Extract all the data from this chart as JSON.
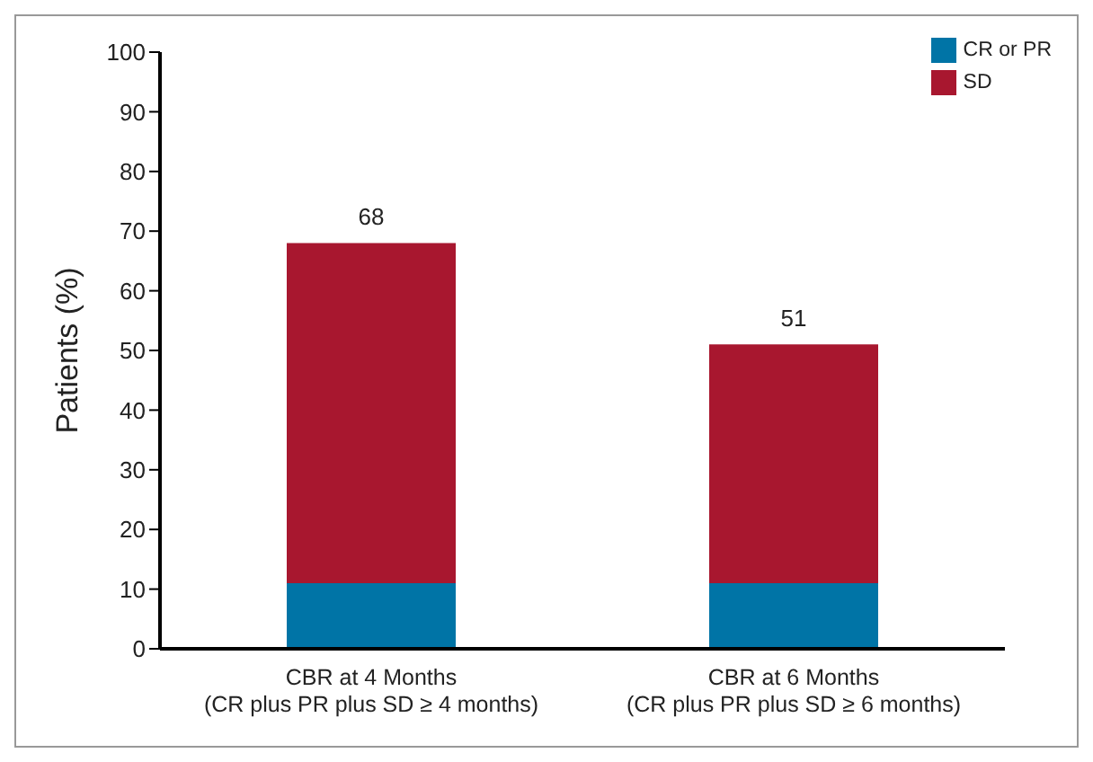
{
  "chart_data": {
    "type": "bar",
    "stacked": true,
    "ylabel": "Patients (%)",
    "categories": [
      "CBR at 4 Months\n(CR plus PR plus SD ≥ 4 months)",
      "CBR at 6 Months\n(CR plus PR plus SD ≥ 6 months)"
    ],
    "series": [
      {
        "name": "CR or PR",
        "color": "#0074a6",
        "values": [
          11,
          11
        ]
      },
      {
        "name": "SD",
        "color": "#a8172f",
        "values": [
          57,
          40
        ]
      }
    ],
    "totals": [
      "68",
      "51"
    ],
    "ylim": [
      0,
      100
    ],
    "yticks": [
      0,
      10,
      20,
      30,
      40,
      50,
      60,
      70,
      80,
      90,
      100
    ],
    "grid": false,
    "legend": "top right"
  }
}
